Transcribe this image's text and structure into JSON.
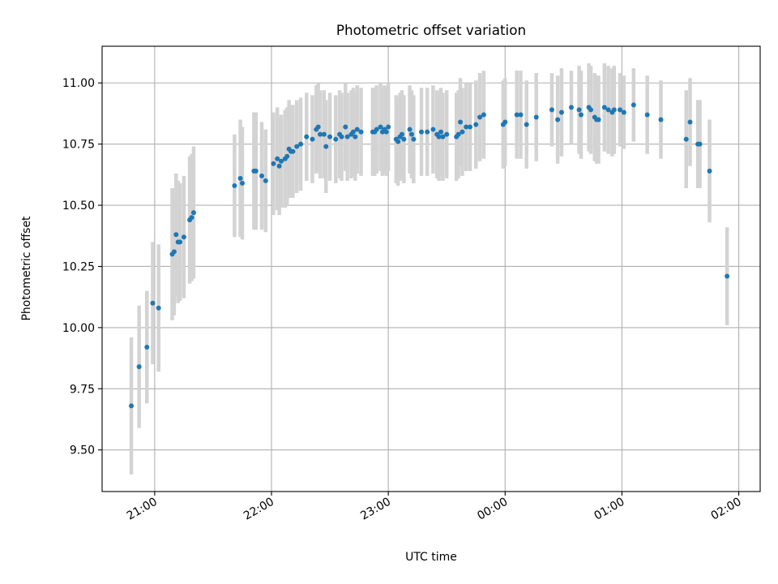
{
  "chart_data": {
    "type": "scatter",
    "title": "Photometric offset variation",
    "xlabel": "UTC time",
    "ylabel": "Photometric offset",
    "x_unit": "UTC time (HH:MM), times after midnight written as 24:MM+",
    "xlim": [
      "20:33",
      "26:11"
    ],
    "ylim": [
      9.33,
      11.15
    ],
    "x_ticks": [
      {
        "value": "21:00",
        "label": "21:00"
      },
      {
        "value": "22:00",
        "label": "22:00"
      },
      {
        "value": "23:00",
        "label": "23:00"
      },
      {
        "value": "24:00",
        "label": "00:00"
      },
      {
        "value": "25:00",
        "label": "01:00"
      },
      {
        "value": "26:00",
        "label": "02:00"
      }
    ],
    "y_ticks": [
      "9.50",
      "9.75",
      "10.00",
      "10.25",
      "10.50",
      "10.75",
      "11.00"
    ],
    "grid": true,
    "legend": "none",
    "colors": {
      "points": "#1f77b4",
      "errorbars": "#d3d3d3"
    },
    "series": [
      {
        "points": [
          {
            "x": "20:48",
            "y": 9.68,
            "err": 0.28
          },
          {
            "x": "20:52",
            "y": 9.84,
            "err": 0.25
          },
          {
            "x": "20:56",
            "y": 9.92,
            "err": 0.23
          },
          {
            "x": "20:59",
            "y": 10.1,
            "err": 0.25
          },
          {
            "x": "21:02",
            "y": 10.08,
            "err": 0.26
          },
          {
            "x": "21:09",
            "y": 10.3,
            "err": 0.27
          },
          {
            "x": "21:10",
            "y": 10.31,
            "err": 0.26
          },
          {
            "x": "21:11",
            "y": 10.38,
            "err": 0.25
          },
          {
            "x": "21:12",
            "y": 10.35,
            "err": 0.25
          },
          {
            "x": "21:13",
            "y": 10.35,
            "err": 0.24
          },
          {
            "x": "21:15",
            "y": 10.37,
            "err": 0.25
          },
          {
            "x": "21:18",
            "y": 10.44,
            "err": 0.26
          },
          {
            "x": "21:19",
            "y": 10.45,
            "err": 0.26
          },
          {
            "x": "21:20",
            "y": 10.47,
            "err": 0.27
          },
          {
            "x": "21:41",
            "y": 10.58,
            "err": 0.21
          },
          {
            "x": "21:44",
            "y": 10.61,
            "err": 0.24
          },
          {
            "x": "21:45",
            "y": 10.59,
            "err": 0.23
          },
          {
            "x": "21:51",
            "y": 10.64,
            "err": 0.24
          },
          {
            "x": "21:52",
            "y": 10.64,
            "err": 0.24
          },
          {
            "x": "21:55",
            "y": 10.62,
            "err": 0.22
          },
          {
            "x": "21:57",
            "y": 10.6,
            "err": 0.21
          },
          {
            "x": "22:01",
            "y": 10.67,
            "err": 0.21
          },
          {
            "x": "22:03",
            "y": 10.69,
            "err": 0.21
          },
          {
            "x": "22:04",
            "y": 10.66,
            "err": 0.2
          },
          {
            "x": "22:05",
            "y": 10.68,
            "err": 0.19
          },
          {
            "x": "22:07",
            "y": 10.69,
            "err": 0.2
          },
          {
            "x": "22:08",
            "y": 10.7,
            "err": 0.2
          },
          {
            "x": "22:09",
            "y": 10.73,
            "err": 0.2
          },
          {
            "x": "22:10",
            "y": 10.72,
            "err": 0.19
          },
          {
            "x": "22:11",
            "y": 10.72,
            "err": 0.19
          },
          {
            "x": "22:13",
            "y": 10.74,
            "err": 0.19
          },
          {
            "x": "22:15",
            "y": 10.75,
            "err": 0.19
          },
          {
            "x": "22:18",
            "y": 10.78,
            "err": 0.18
          },
          {
            "x": "22:21",
            "y": 10.77,
            "err": 0.18
          },
          {
            "x": "22:23",
            "y": 10.81,
            "err": 0.18
          },
          {
            "x": "22:24",
            "y": 10.82,
            "err": 0.18
          },
          {
            "x": "22:25",
            "y": 10.79,
            "err": 0.18
          },
          {
            "x": "22:27",
            "y": 10.79,
            "err": 0.18
          },
          {
            "x": "22:28",
            "y": 10.74,
            "err": 0.19
          },
          {
            "x": "22:30",
            "y": 10.78,
            "err": 0.18
          },
          {
            "x": "22:33",
            "y": 10.77,
            "err": 0.18
          },
          {
            "x": "22:35",
            "y": 10.79,
            "err": 0.18
          },
          {
            "x": "22:36",
            "y": 10.78,
            "err": 0.18
          },
          {
            "x": "22:38",
            "y": 10.82,
            "err": 0.18
          },
          {
            "x": "22:39",
            "y": 10.78,
            "err": 0.18
          },
          {
            "x": "22:41",
            "y": 10.79,
            "err": 0.18
          },
          {
            "x": "22:42",
            "y": 10.8,
            "err": 0.18
          },
          {
            "x": "22:43",
            "y": 10.78,
            "err": 0.18
          },
          {
            "x": "22:44",
            "y": 10.81,
            "err": 0.18
          },
          {
            "x": "22:46",
            "y": 10.8,
            "err": 0.18
          },
          {
            "x": "22:52",
            "y": 10.8,
            "err": 0.18
          },
          {
            "x": "22:53",
            "y": 10.8,
            "err": 0.18
          },
          {
            "x": "22:54",
            "y": 10.81,
            "err": 0.18
          },
          {
            "x": "22:56",
            "y": 10.82,
            "err": 0.18
          },
          {
            "x": "22:57",
            "y": 10.8,
            "err": 0.18
          },
          {
            "x": "22:58",
            "y": 10.81,
            "err": 0.18
          },
          {
            "x": "22:59",
            "y": 10.8,
            "err": 0.18
          },
          {
            "x": "23:00",
            "y": 10.82,
            "err": 0.18
          },
          {
            "x": "23:04",
            "y": 10.77,
            "err": 0.18
          },
          {
            "x": "23:05",
            "y": 10.76,
            "err": 0.18
          },
          {
            "x": "23:06",
            "y": 10.78,
            "err": 0.18
          },
          {
            "x": "23:07",
            "y": 10.79,
            "err": 0.18
          },
          {
            "x": "23:08",
            "y": 10.77,
            "err": 0.18
          },
          {
            "x": "23:11",
            "y": 10.81,
            "err": 0.18
          },
          {
            "x": "23:12",
            "y": 10.79,
            "err": 0.18
          },
          {
            "x": "23:13",
            "y": 10.77,
            "err": 0.18
          },
          {
            "x": "23:17",
            "y": 10.8,
            "err": 0.18
          },
          {
            "x": "23:20",
            "y": 10.8,
            "err": 0.18
          },
          {
            "x": "23:23",
            "y": 10.81,
            "err": 0.18
          },
          {
            "x": "23:25",
            "y": 10.79,
            "err": 0.18
          },
          {
            "x": "23:26",
            "y": 10.78,
            "err": 0.18
          },
          {
            "x": "23:27",
            "y": 10.8,
            "err": 0.18
          },
          {
            "x": "23:28",
            "y": 10.78,
            "err": 0.18
          },
          {
            "x": "23:30",
            "y": 10.79,
            "err": 0.18
          },
          {
            "x": "23:35",
            "y": 10.78,
            "err": 0.18
          },
          {
            "x": "23:36",
            "y": 10.79,
            "err": 0.18
          },
          {
            "x": "23:37",
            "y": 10.84,
            "err": 0.18
          },
          {
            "x": "23:38",
            "y": 10.8,
            "err": 0.18
          },
          {
            "x": "23:40",
            "y": 10.82,
            "err": 0.18
          },
          {
            "x": "23:42",
            "y": 10.82,
            "err": 0.18
          },
          {
            "x": "23:45",
            "y": 10.83,
            "err": 0.18
          },
          {
            "x": "23:47",
            "y": 10.86,
            "err": 0.18
          },
          {
            "x": "23:49",
            "y": 10.87,
            "err": 0.18
          },
          {
            "x": "23:59",
            "y": 10.83,
            "err": 0.18
          },
          {
            "x": "24:00",
            "y": 10.84,
            "err": 0.18
          },
          {
            "x": "24:06",
            "y": 10.87,
            "err": 0.18
          },
          {
            "x": "24:08",
            "y": 10.87,
            "err": 0.18
          },
          {
            "x": "24:11",
            "y": 10.83,
            "err": 0.18
          },
          {
            "x": "24:16",
            "y": 10.86,
            "err": 0.18
          },
          {
            "x": "24:24",
            "y": 10.89,
            "err": 0.15
          },
          {
            "x": "24:27",
            "y": 10.85,
            "err": 0.18
          },
          {
            "x": "24:29",
            "y": 10.88,
            "err": 0.18
          },
          {
            "x": "24:34",
            "y": 10.9,
            "err": 0.15
          },
          {
            "x": "24:38",
            "y": 10.89,
            "err": 0.18
          },
          {
            "x": "24:39",
            "y": 10.87,
            "err": 0.18
          },
          {
            "x": "24:43",
            "y": 10.9,
            "err": 0.18
          },
          {
            "x": "24:44",
            "y": 10.89,
            "err": 0.18
          },
          {
            "x": "24:46",
            "y": 10.86,
            "err": 0.18
          },
          {
            "x": "24:47",
            "y": 10.85,
            "err": 0.18
          },
          {
            "x": "24:48",
            "y": 10.85,
            "err": 0.18
          },
          {
            "x": "24:51",
            "y": 10.9,
            "err": 0.18
          },
          {
            "x": "24:53",
            "y": 10.89,
            "err": 0.18
          },
          {
            "x": "24:55",
            "y": 10.88,
            "err": 0.18
          },
          {
            "x": "24:56",
            "y": 10.89,
            "err": 0.18
          },
          {
            "x": "24:59",
            "y": 10.89,
            "err": 0.15
          },
          {
            "x": "25:01",
            "y": 10.88,
            "err": 0.15
          },
          {
            "x": "25:06",
            "y": 10.91,
            "err": 0.15
          },
          {
            "x": "25:13",
            "y": 10.87,
            "err": 0.16
          },
          {
            "x": "25:20",
            "y": 10.85,
            "err": 0.16
          },
          {
            "x": "25:33",
            "y": 10.77,
            "err": 0.2
          },
          {
            "x": "25:35",
            "y": 10.84,
            "err": 0.18
          },
          {
            "x": "25:39",
            "y": 10.75,
            "err": 0.18
          },
          {
            "x": "25:40",
            "y": 10.75,
            "err": 0.18
          },
          {
            "x": "25:45",
            "y": 10.64,
            "err": 0.21
          },
          {
            "x": "25:54",
            "y": 10.21,
            "err": 0.2
          }
        ]
      }
    ]
  }
}
